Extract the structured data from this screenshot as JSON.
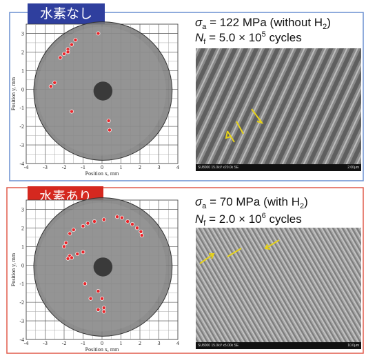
{
  "panels": [
    {
      "badge": "水素なし",
      "stress": [
        "σ",
        "a",
        " = 122 MPa (without H",
        "2",
        ")"
      ],
      "cycles": [
        "N",
        "f",
        " = 5.0 × 10",
        "5",
        " cycles"
      ],
      "plot": {
        "type": "scatter",
        "xlabel": "Position x, mm",
        "ylabel": "Position y, mm",
        "xlim": [
          -4,
          4
        ],
        "ylim": [
          -4,
          3.5
        ],
        "xticks": [
          -4,
          -3,
          -2,
          -1,
          0,
          1,
          2,
          3,
          4
        ],
        "yticks": [
          -4,
          -3,
          -2,
          -1,
          0,
          1,
          2,
          3
        ],
        "x": [
          -0.2,
          -1.4,
          -1.6,
          -1.8,
          -2.0,
          -2.2,
          -1.8,
          -2.5,
          -2.7,
          -1.6,
          0.35,
          0.4
        ],
        "y": [
          3.0,
          2.65,
          2.4,
          2.15,
          1.9,
          1.7,
          2.0,
          0.35,
          0.15,
          -1.2,
          -1.7,
          -2.2
        ],
        "color": "#e8262b"
      },
      "sem": {
        "info": "SU8000 15.0kV x20.0k SE",
        "scale": "2.00μm"
      }
    },
    {
      "badge": "水素あり",
      "stress": [
        "σ",
        "a",
        " = 70 MPa (with H",
        "2",
        ")"
      ],
      "cycles": [
        "N",
        "f",
        " = 2.0 × 10",
        "6",
        " cycles"
      ],
      "plot": {
        "type": "scatter",
        "xlabel": "Position x, mm",
        "ylabel": "Position y, mm",
        "xlim": [
          -4,
          4
        ],
        "ylim": [
          -4,
          3.5
        ],
        "xticks": [
          -4,
          -3,
          -2,
          -1,
          0,
          1,
          2,
          3,
          4
        ],
        "yticks": [
          -4,
          -3,
          -2,
          -1,
          0,
          1,
          2,
          3
        ],
        "x": [
          0.8,
          1.05,
          1.35,
          1.6,
          1.85,
          2.05,
          2.1,
          -1.0,
          -0.75,
          -0.4,
          0.1,
          -1.5,
          -1.7,
          -1.9,
          -2.0,
          -1.7,
          -1.6,
          -1.3,
          -1.0,
          -1.8,
          -0.9,
          -0.6,
          -0.2,
          0,
          0.1,
          -0.2,
          0.1
        ],
        "y": [
          2.6,
          2.55,
          2.35,
          2.2,
          2.0,
          1.8,
          1.6,
          2.1,
          2.25,
          2.35,
          2.45,
          1.9,
          1.7,
          1.2,
          1.0,
          0.5,
          0.4,
          0.6,
          0.7,
          0.35,
          -1.0,
          -1.8,
          -1.4,
          -1.8,
          -2.3,
          -2.4,
          -2.5
        ],
        "color": "#e8262b"
      },
      "sem": {
        "info": "SU8000 15.0kV x5.00k SE",
        "scale": "10.0μm"
      }
    }
  ]
}
